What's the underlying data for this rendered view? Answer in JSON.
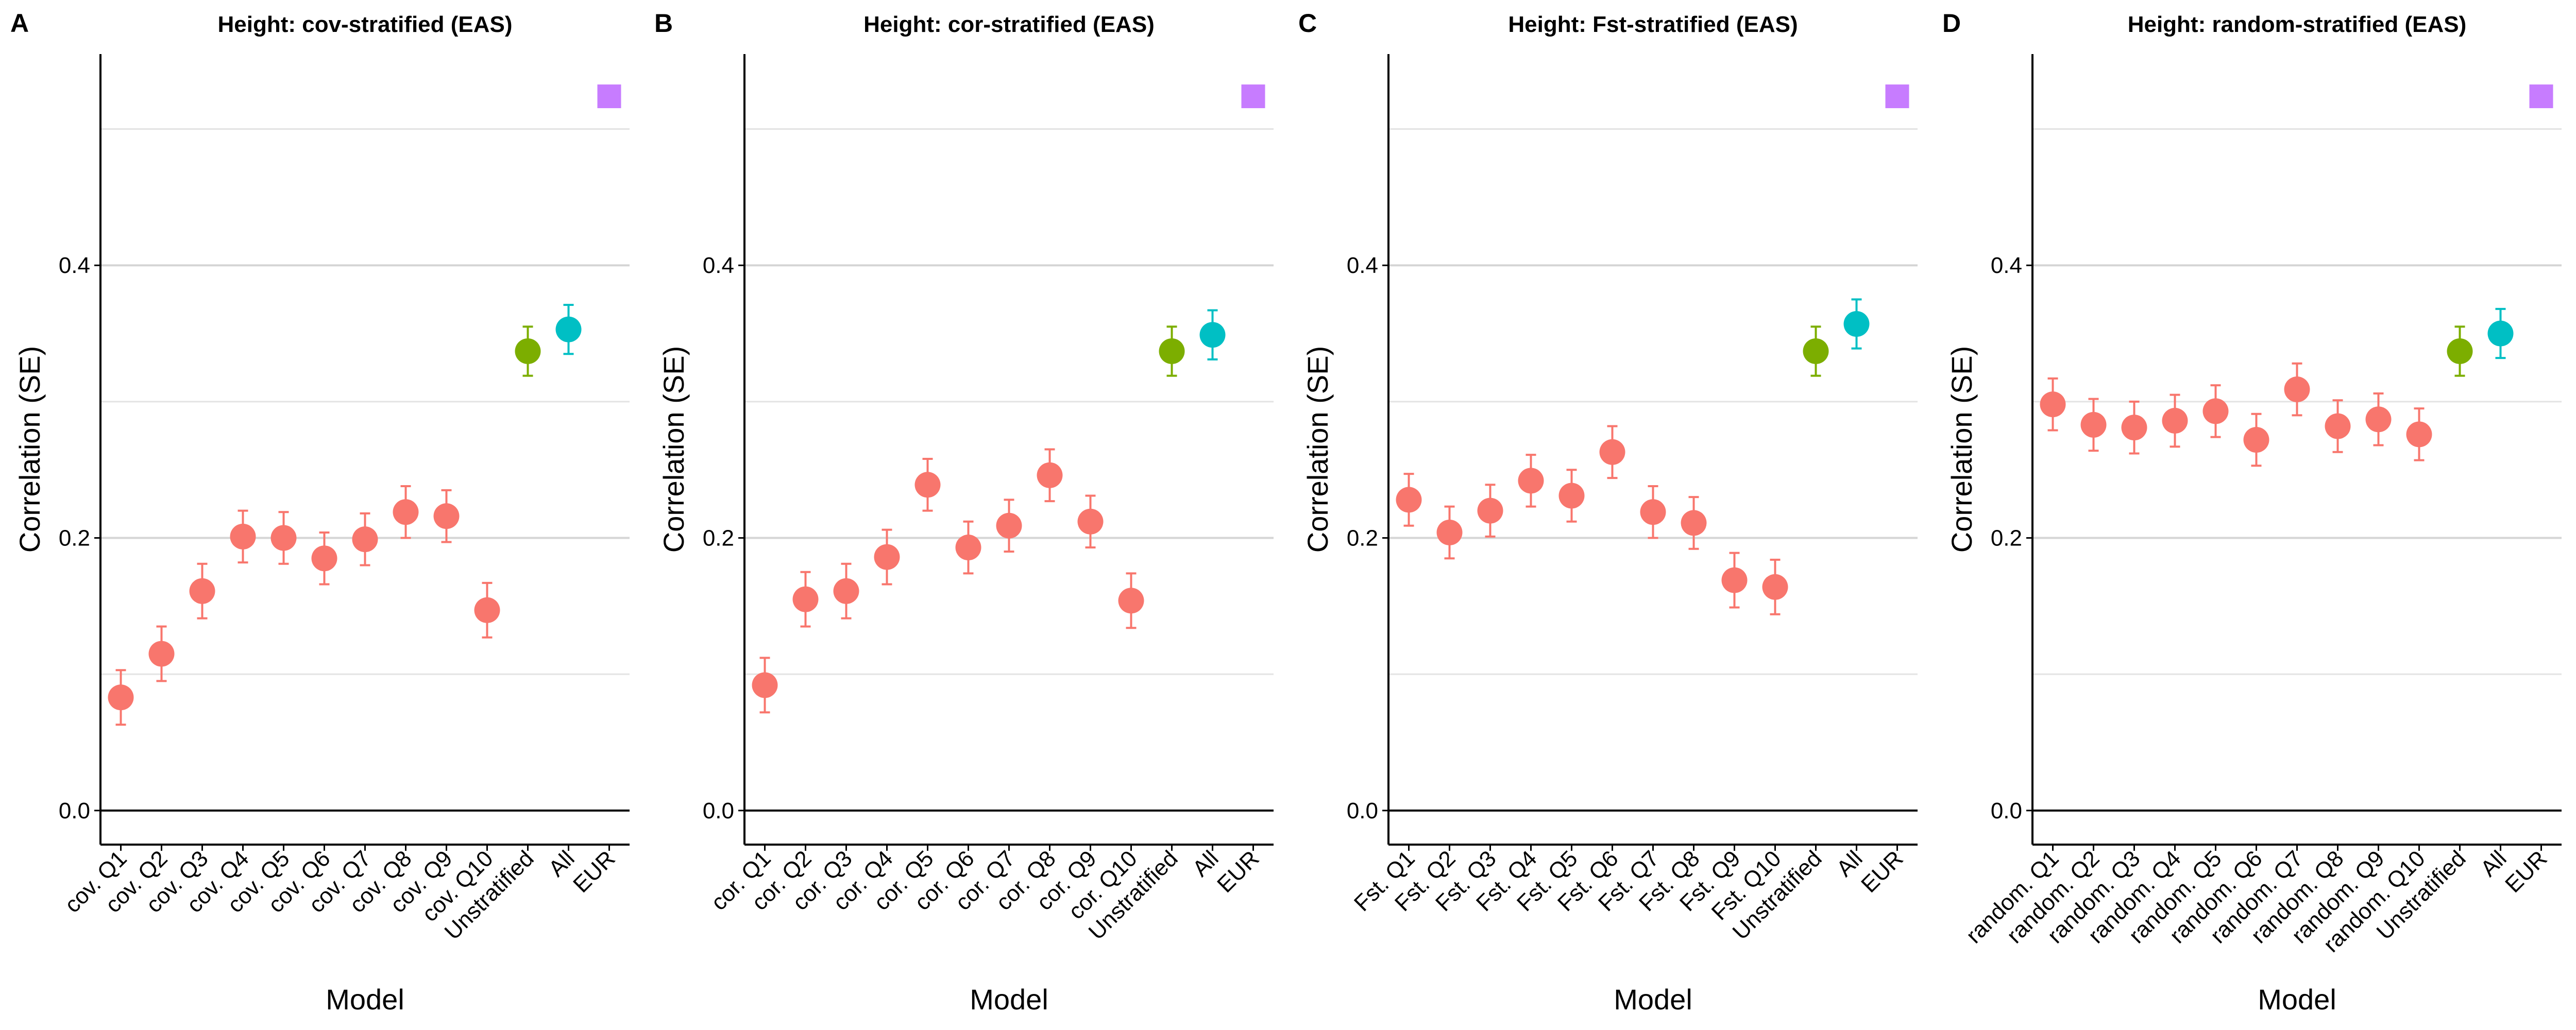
{
  "colors": {
    "stratified": "#F8766D",
    "unstratified": "#7CAE00",
    "all": "#00BFC4",
    "eur": "#C77CFF"
  },
  "panels": [
    {
      "letter": "A",
      "title": "Height: cov-stratified (EAS)",
      "xlabel": "Model",
      "ylabel": "Correlation (SE)",
      "ylim": [
        -0.025,
        0.555
      ],
      "yticks": [
        0.0,
        0.2,
        0.4
      ],
      "ytick_labels": [
        "0.0",
        "0.2",
        "0.4"
      ],
      "minor_grid": [
        0.1,
        0.3,
        0.5
      ],
      "chart_data": {
        "type": "scatter",
        "categories": [
          "cov. Q1",
          "cov. Q2",
          "cov. Q3",
          "cov. Q4",
          "cov. Q5",
          "cov. Q6",
          "cov. Q7",
          "cov. Q8",
          "cov. Q9",
          "cov. Q10",
          "Unstratified",
          "All",
          "EUR"
        ],
        "values": [
          0.083,
          0.115,
          0.161,
          0.201,
          0.2,
          0.185,
          0.199,
          0.219,
          0.216,
          0.147,
          0.337,
          0.353,
          0.524
        ],
        "se": [
          0.02,
          0.02,
          0.02,
          0.019,
          0.019,
          0.019,
          0.019,
          0.019,
          0.019,
          0.02,
          0.018,
          0.018,
          0.0
        ],
        "groups": [
          "stratified",
          "stratified",
          "stratified",
          "stratified",
          "stratified",
          "stratified",
          "stratified",
          "stratified",
          "stratified",
          "stratified",
          "unstratified",
          "all",
          "eur"
        ]
      }
    },
    {
      "letter": "B",
      "title": "Height: cor-stratified (EAS)",
      "xlabel": "Model",
      "ylabel": "Correlation (SE)",
      "ylim": [
        -0.025,
        0.555
      ],
      "yticks": [
        0.0,
        0.2,
        0.4
      ],
      "ytick_labels": [
        "0.0",
        "0.2",
        "0.4"
      ],
      "minor_grid": [
        0.1,
        0.3,
        0.5
      ],
      "chart_data": {
        "type": "scatter",
        "categories": [
          "cor. Q1",
          "cor. Q2",
          "cor. Q3",
          "cor. Q4",
          "cor. Q5",
          "cor. Q6",
          "cor. Q7",
          "cor. Q8",
          "cor. Q9",
          "cor. Q10",
          "Unstratified",
          "All",
          "EUR"
        ],
        "values": [
          0.092,
          0.155,
          0.161,
          0.186,
          0.239,
          0.193,
          0.209,
          0.246,
          0.212,
          0.154,
          0.337,
          0.349,
          0.524
        ],
        "se": [
          0.02,
          0.02,
          0.02,
          0.02,
          0.019,
          0.019,
          0.019,
          0.019,
          0.019,
          0.02,
          0.018,
          0.018,
          0.0
        ],
        "groups": [
          "stratified",
          "stratified",
          "stratified",
          "stratified",
          "stratified",
          "stratified",
          "stratified",
          "stratified",
          "stratified",
          "stratified",
          "unstratified",
          "all",
          "eur"
        ]
      }
    },
    {
      "letter": "C",
      "title": "Height: Fst-stratified (EAS)",
      "xlabel": "Model",
      "ylabel": "Correlation (SE)",
      "ylim": [
        -0.025,
        0.555
      ],
      "yticks": [
        0.0,
        0.2,
        0.4
      ],
      "ytick_labels": [
        "0.0",
        "0.2",
        "0.4"
      ],
      "minor_grid": [
        0.1,
        0.3,
        0.5
      ],
      "chart_data": {
        "type": "scatter",
        "categories": [
          "Fst. Q1",
          "Fst. Q2",
          "Fst. Q3",
          "Fst. Q4",
          "Fst. Q5",
          "Fst. Q6",
          "Fst. Q7",
          "Fst. Q8",
          "Fst. Q9",
          "Fst. Q10",
          "Unstratified",
          "All",
          "EUR"
        ],
        "values": [
          0.228,
          0.204,
          0.22,
          0.242,
          0.231,
          0.263,
          0.219,
          0.211,
          0.169,
          0.164,
          0.337,
          0.357,
          0.524
        ],
        "se": [
          0.019,
          0.019,
          0.019,
          0.019,
          0.019,
          0.019,
          0.019,
          0.019,
          0.02,
          0.02,
          0.018,
          0.018,
          0.0
        ],
        "groups": [
          "stratified",
          "stratified",
          "stratified",
          "stratified",
          "stratified",
          "stratified",
          "stratified",
          "stratified",
          "stratified",
          "stratified",
          "unstratified",
          "all",
          "eur"
        ]
      }
    },
    {
      "letter": "D",
      "title": "Height: random-stratified (EAS)",
      "xlabel": "Model",
      "ylabel": "Correlation (SE)",
      "ylim": [
        -0.025,
        0.555
      ],
      "yticks": [
        0.0,
        0.2,
        0.4
      ],
      "ytick_labels": [
        "0.0",
        "0.2",
        "0.4"
      ],
      "minor_grid": [
        0.1,
        0.3,
        0.5
      ],
      "chart_data": {
        "type": "scatter",
        "categories": [
          "random. Q1",
          "random. Q2",
          "random. Q3",
          "random. Q4",
          "random. Q5",
          "random. Q6",
          "random. Q7",
          "random. Q8",
          "random. Q9",
          "random. Q10",
          "Unstratified",
          "All",
          "EUR"
        ],
        "values": [
          0.298,
          0.283,
          0.281,
          0.286,
          0.293,
          0.272,
          0.309,
          0.282,
          0.287,
          0.276,
          0.337,
          0.35,
          0.524
        ],
        "se": [
          0.019,
          0.019,
          0.019,
          0.019,
          0.019,
          0.019,
          0.019,
          0.019,
          0.019,
          0.019,
          0.018,
          0.018,
          0.0
        ],
        "groups": [
          "stratified",
          "stratified",
          "stratified",
          "stratified",
          "stratified",
          "stratified",
          "stratified",
          "stratified",
          "stratified",
          "stratified",
          "unstratified",
          "all",
          "eur"
        ]
      }
    }
  ]
}
